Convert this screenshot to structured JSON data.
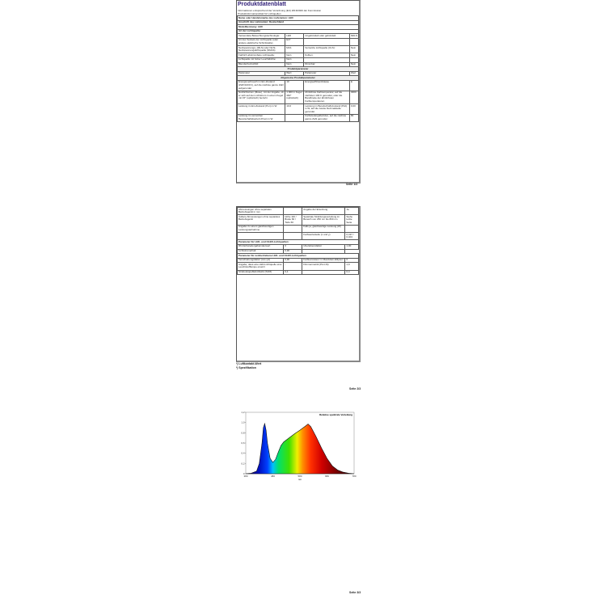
{
  "page1": {
    "title": "Produktdatenblatt",
    "intro": [
      "Informationen entsprechend der Verordnung (EU) 2019/2020 der Kommission",
      "Produktinformationsblatt für Lichtquellen"
    ],
    "header_rows": [
      "Name oder Handelsmarke des Lieferanten:  LED",
      "Anschrift des Lieferanten: Deutschland",
      "Modellkennung: LED",
      "Art der Lichtquelle:"
    ],
    "rows": [
      [
        "Verwendete Beleuchtungstechnologie:",
        "LED",
        "Ungebündelt oder gebündelt:",
        "NDLS"
      ],
      [
        "Art des Sockels der Lichtquelle (oder andere elektrische Schnittstelle)",
        "E27",
        "",
        ""
      ],
      [
        "Netzspannungs- (MLS) oder Nicht-Netzspannungslichtquelle (NMLS):",
        "MLS",
        "Vernetzte Lichtquelle (CLS):",
        "Nein"
      ],
      [
        "Farblich abstimmbare Lichtquelle:",
        "Nein",
        "Kolben:",
        "Nein"
      ],
      [
        "Lichtquelle mit hoher Leuchtdichte:",
        "Nein",
        "",
        ""
      ],
      [
        "Blendschutzschild:",
        "Nein",
        "Dimmbar:",
        "Nein"
      ]
    ],
    "sec1": "Produktparameter",
    "param_head": [
      "Parameter",
      "Wert",
      "Parameter",
      "Wert"
    ],
    "sec2": "Allgemeine Produktparameter",
    "rows2": [
      [
        "Energieverbrauch im Ein-Zustand (kWh/1000 h), auf die nächste ganze Zahl aufgerundet",
        "10",
        "Energieeffizienzklasse",
        "E"
      ],
      [
        "Nutzlichtstrom (Φuse), mit der Angabe, ob er sich auf den Lichtstrom in einem Kegel mit 15° (sphärisch) bezieht",
        "1 000 in Kegel 360° (sphärisch)",
        "Ähnlichste Farbtemperatur, auf die nächsten 100 K gerundet, oder die Bandbreite der ähnlichsten Farbtemperaturen",
        "3000"
      ],
      [
        "Leistung im Ein-Zustand (Pon) in W",
        "10,0",
        "Leistung im Bereitschaftszustand (Psb) in W, auf die zweite Dezimalstelle gerundet",
        "0,00"
      ],
      [
        "Leistung im vernetzten Bereitschaftsbetrieb (Pnet) in W",
        "",
        "Farbwiedergabeindex, auf die nächste ganze Zahl gerundet",
        "80"
      ]
    ],
    "page_number": "Seite 1/3"
  },
  "page2": {
    "rows": [
      [
        "Abmessungen ohne separates Betriebsgerät in mm",
        "",
        "Angabe der Ersetzung",
        "Ja"
      ],
      [
        "Äußere Abmessungen ohne separates Betriebsgerät",
        "Höhe 110 / Breite 60 / Tiefe 60",
        "Spektrale Strahlungsverteilung im Bereich von 250 nm bis 800 nm",
        "Siehe letzte Seite"
      ],
      [
        "Angabe zu einem gleichwertigen Leistungsaufnahme",
        "",
        "Falls ja, gleichwertige Leistung (W)",
        ""
      ],
      [
        "",
        "",
        "Farbwertanteile (x und y)",
        "0,437 / 0,404"
      ]
    ],
    "sec3": "Parameter für LED- und OLED-Lichtquellen:",
    "rows3": [
      [
        "R9-Farbwiedergabeindexwert",
        "0",
        "Überlebensfaktor",
        "1,00"
      ],
      [
        "Lichtstromerhalt",
        "0,96",
        ""
      ]
    ],
    "sec4": "Parameter für netzbetriebene LED- und OLED-Lichtquellen:",
    "rows4": [
      [
        "Verschiebungsfaktor (cos φ1)",
        "0,90",
        "Farbkonsistenz in MacAdam-Ellipsen",
        "6"
      ],
      [
        "Angabe, dass eine LED-Lichtquelle eine Leuchtstofflampe ersetzt",
        "-",
        "Flimmermetrik (Pst LM)",
        "1,0"
      ],
      [
        "Stroboskopeffekt-Metrik (SVM)",
        "0,4",
        "",
        "0,4"
      ]
    ],
    "notes": [
      "¹) Luftkontakt-Wert",
      "²) Spezifikation"
    ],
    "page_number": "Seite 2/3"
  },
  "page3": {
    "page_number": "Seite 3/3"
  },
  "chart_data": {
    "type": "area",
    "title": "Relative spektrale Verteilung",
    "xlabel": "nm",
    "ylabel": "",
    "xlim": [
      380,
      780
    ],
    "ylim": [
      0,
      1.2
    ],
    "x_ticks": [
      "380",
      "480",
      "580",
      "680",
      "780"
    ],
    "y_ticks": [
      "0",
      "0,2",
      "0,4",
      "0,6",
      "0,8",
      "1,0",
      "1,2"
    ],
    "x": [
      380,
      400,
      420,
      430,
      440,
      445,
      450,
      455,
      460,
      470,
      480,
      490,
      500,
      510,
      520,
      540,
      560,
      580,
      600,
      610,
      620,
      640,
      660,
      680,
      700,
      720,
      740,
      760,
      780
    ],
    "values": [
      0,
      0.01,
      0.05,
      0.2,
      0.6,
      0.9,
      0.98,
      0.85,
      0.6,
      0.3,
      0.22,
      0.28,
      0.42,
      0.55,
      0.62,
      0.7,
      0.78,
      0.85,
      0.93,
      0.97,
      0.92,
      0.72,
      0.5,
      0.3,
      0.15,
      0.07,
      0.03,
      0.01,
      0
    ]
  }
}
